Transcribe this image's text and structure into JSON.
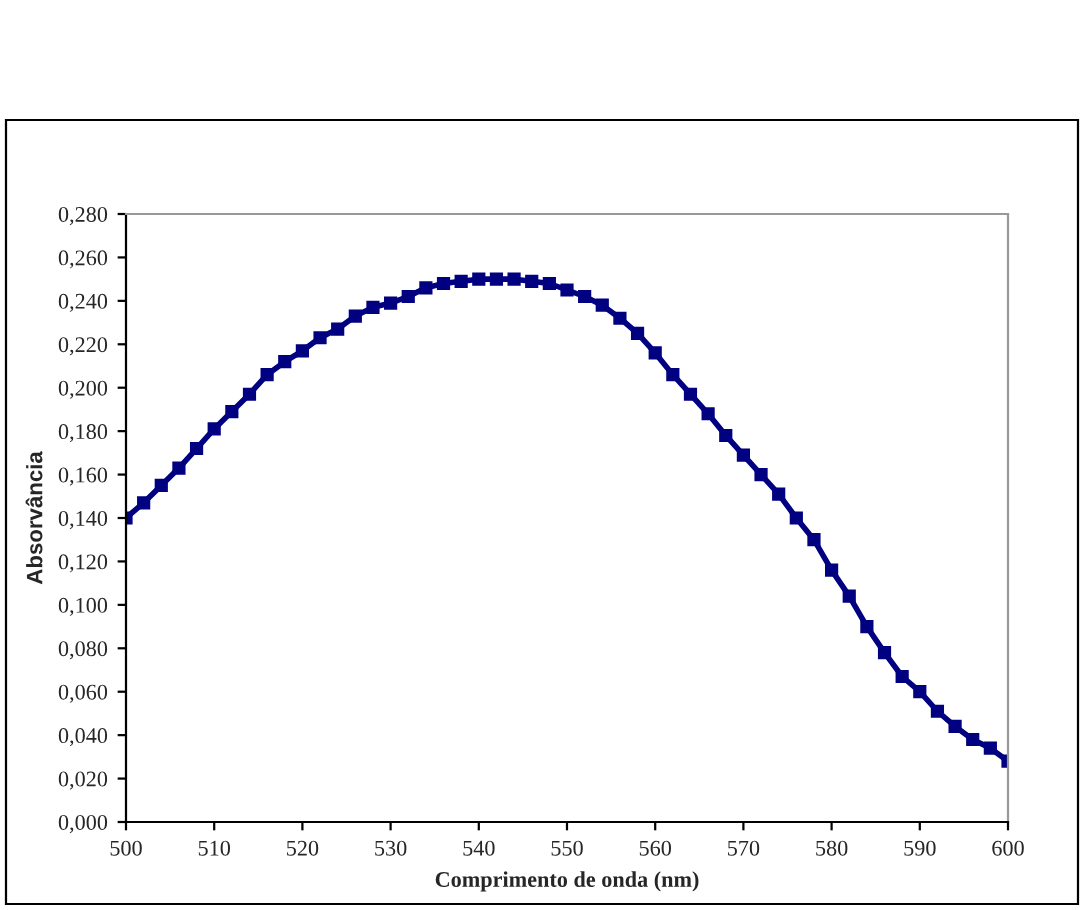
{
  "chart_data": {
    "type": "line",
    "xlabel": "Comprimento de onda (nm)",
    "ylabel": "Absorvância",
    "x": [
      500,
      502,
      504,
      506,
      508,
      510,
      512,
      514,
      516,
      518,
      520,
      522,
      524,
      526,
      528,
      530,
      532,
      534,
      536,
      538,
      540,
      542,
      544,
      546,
      548,
      550,
      552,
      554,
      556,
      558,
      560,
      562,
      564,
      566,
      568,
      570,
      572,
      574,
      576,
      578,
      580,
      582,
      584,
      586,
      588,
      590,
      592,
      594,
      596,
      598,
      600
    ],
    "series": [
      {
        "color": "#000080",
        "values": [
          0.14,
          0.147,
          0.155,
          0.163,
          0.172,
          0.181,
          0.189,
          0.197,
          0.206,
          0.212,
          0.217,
          0.223,
          0.227,
          0.233,
          0.237,
          0.239,
          0.242,
          0.246,
          0.248,
          0.249,
          0.25,
          0.25,
          0.25,
          0.249,
          0.248,
          0.245,
          0.242,
          0.238,
          0.232,
          0.225,
          0.216,
          0.206,
          0.197,
          0.188,
          0.178,
          0.169,
          0.16,
          0.151,
          0.14,
          0.13,
          0.116,
          0.104,
          0.09,
          0.078,
          0.067,
          0.06,
          0.051,
          0.044,
          0.038,
          0.034,
          0.028
        ]
      }
    ],
    "xlim": [
      500,
      600
    ],
    "xticks": [
      500,
      510,
      520,
      530,
      540,
      550,
      560,
      570,
      580,
      590,
      600
    ],
    "ylim": [
      0,
      0.28
    ],
    "yticks": [
      {
        "value": 0,
        "label": "0,000"
      },
      {
        "value": 0.02,
        "label": "0,020"
      },
      {
        "value": 0.04,
        "label": "0,040"
      },
      {
        "value": 0.06,
        "label": "0,060"
      },
      {
        "value": 0.08,
        "label": "0,080"
      },
      {
        "value": 0.1,
        "label": "0,100"
      },
      {
        "value": 0.12,
        "label": "0,120"
      },
      {
        "value": 0.14,
        "label": "0,140"
      },
      {
        "value": 0.16,
        "label": "0,160"
      },
      {
        "value": 0.18,
        "label": "0,180"
      },
      {
        "value": 0.2,
        "label": "0,200"
      },
      {
        "value": 0.22,
        "label": "0,220"
      },
      {
        "value": 0.24,
        "label": "0,240"
      },
      {
        "value": 0.26,
        "label": "0,260"
      },
      {
        "value": 0.28,
        "label": "0,280"
      }
    ],
    "grid": false,
    "legend": false,
    "marker": "square",
    "line_style": "solid"
  }
}
